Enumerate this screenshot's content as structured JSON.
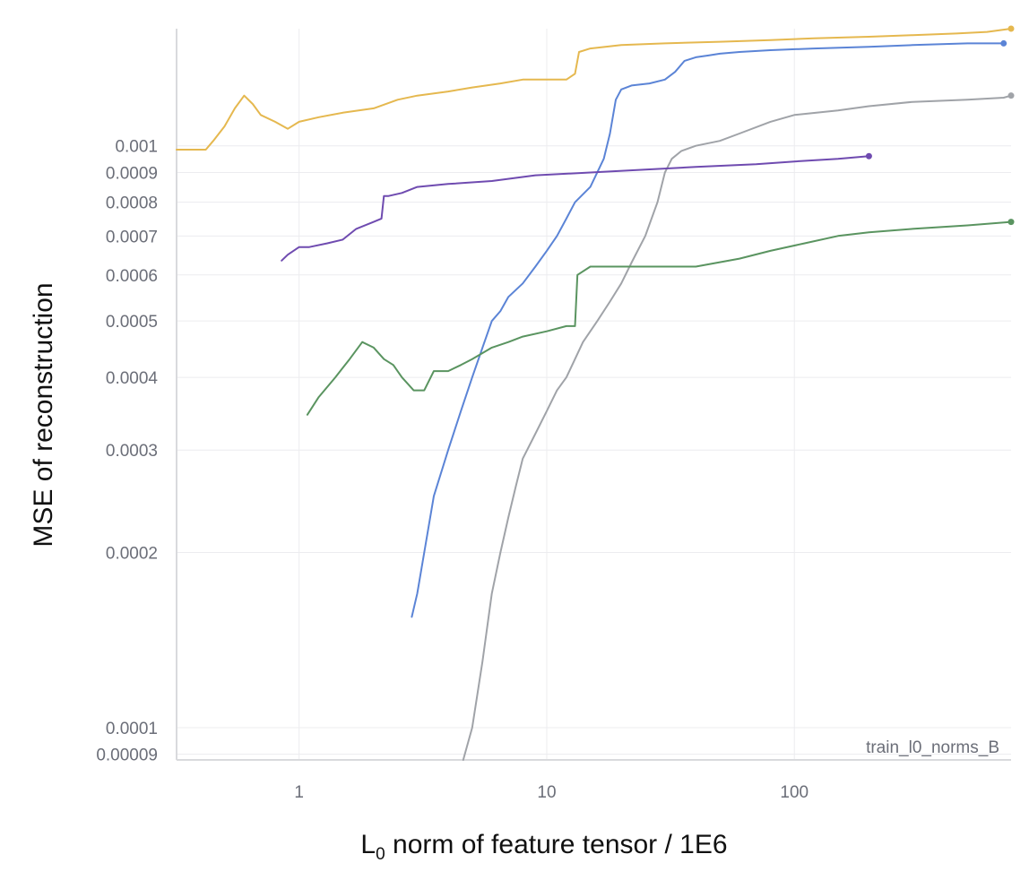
{
  "chart_data": {
    "type": "line",
    "title": "",
    "xlabel_main": "L",
    "xlabel_sub": "0",
    "xlabel_rest": " norm of feature tensor / 1E6",
    "ylabel": "MSE of reconstruction",
    "x_scale": "log",
    "y_scale": "log",
    "xlim": [
      0.32,
      750
    ],
    "ylim": [
      8.8e-05,
      0.00159
    ],
    "grid": true,
    "legend": "none",
    "annotation": "train_l0_norms_B",
    "x_ticks": [
      {
        "value": 1,
        "label": "1"
      },
      {
        "value": 10,
        "label": "10"
      },
      {
        "value": 100,
        "label": "100"
      }
    ],
    "y_ticks": [
      {
        "value": 9e-05,
        "label": "0.00009"
      },
      {
        "value": 0.0001,
        "label": "0.0001"
      },
      {
        "value": 0.0002,
        "label": "0.0002"
      },
      {
        "value": 0.0003,
        "label": "0.0003"
      },
      {
        "value": 0.0004,
        "label": "0.0004"
      },
      {
        "value": 0.0005,
        "label": "0.0005"
      },
      {
        "value": 0.0006,
        "label": "0.0006"
      },
      {
        "value": 0.0007,
        "label": "0.0007"
      },
      {
        "value": 0.0008,
        "label": "0.0008"
      },
      {
        "value": 0.0009,
        "label": "0.0009"
      },
      {
        "value": 0.001,
        "label": "0.001"
      }
    ],
    "series": [
      {
        "name": "yellow",
        "color": "#e5b84f",
        "x": [
          0.32,
          0.42,
          0.45,
          0.5,
          0.55,
          0.6,
          0.65,
          0.7,
          0.8,
          0.9,
          1.0,
          1.2,
          1.5,
          2.0,
          2.5,
          3.0,
          4.0,
          5.0,
          6.5,
          8.0,
          10,
          12,
          13,
          13.5,
          15,
          20,
          30,
          50,
          80,
          120,
          200,
          300,
          450,
          600,
          750
        ],
        "y": [
          0.000985,
          0.000985,
          0.00102,
          0.00108,
          0.00116,
          0.00122,
          0.00118,
          0.00113,
          0.0011,
          0.00107,
          0.0011,
          0.00112,
          0.00114,
          0.00116,
          0.0012,
          0.00122,
          0.00124,
          0.00126,
          0.00128,
          0.0013,
          0.0013,
          0.0013,
          0.00133,
          0.00145,
          0.00147,
          0.00149,
          0.0015,
          0.00151,
          0.00152,
          0.00153,
          0.00154,
          0.00155,
          0.00156,
          0.00157,
          0.00159
        ]
      },
      {
        "name": "blue",
        "color": "#5b84d6",
        "x": [
          2.85,
          3.0,
          3.2,
          3.5,
          4.0,
          4.5,
          5.0,
          5.5,
          6.0,
          6.5,
          7.0,
          8.0,
          9.0,
          10,
          11,
          12,
          13,
          15,
          17,
          18,
          19,
          20,
          22,
          26,
          30,
          33,
          36,
          40,
          45,
          50,
          60,
          80,
          120,
          200,
          300,
          500,
          700
        ],
        "y": [
          0.000155,
          0.00017,
          0.0002,
          0.00025,
          0.0003,
          0.00035,
          0.0004,
          0.00045,
          0.0005,
          0.00052,
          0.00055,
          0.00058,
          0.00062,
          0.00066,
          0.0007,
          0.00075,
          0.0008,
          0.00085,
          0.00095,
          0.00105,
          0.0012,
          0.00125,
          0.00127,
          0.00128,
          0.0013,
          0.00134,
          0.0014,
          0.00142,
          0.00143,
          0.00144,
          0.00145,
          0.00146,
          0.00147,
          0.00148,
          0.00149,
          0.0015,
          0.0015
        ]
      },
      {
        "name": "gray",
        "color": "#a0a3a8",
        "x": [
          4.6,
          5.0,
          5.5,
          6.0,
          6.5,
          7.0,
          7.5,
          8.0,
          9.0,
          10,
          11,
          12,
          13,
          14,
          16,
          18,
          20,
          22,
          25,
          28,
          30,
          32,
          35,
          40,
          50,
          60,
          80,
          100,
          150,
          200,
          300,
          500,
          700,
          750
        ],
        "y": [
          8.8e-05,
          0.0001,
          0.00013,
          0.00017,
          0.0002,
          0.00023,
          0.00026,
          0.00029,
          0.00032,
          0.00035,
          0.00038,
          0.0004,
          0.00043,
          0.00046,
          0.0005,
          0.00054,
          0.00058,
          0.00063,
          0.0007,
          0.0008,
          0.0009,
          0.00095,
          0.00098,
          0.001,
          0.00102,
          0.00105,
          0.0011,
          0.00113,
          0.00115,
          0.00117,
          0.00119,
          0.0012,
          0.00121,
          0.00122
        ]
      },
      {
        "name": "purple",
        "color": "#6f4bb0",
        "x": [
          0.85,
          0.9,
          1.0,
          1.1,
          1.3,
          1.5,
          1.7,
          2.0,
          2.15,
          2.2,
          2.3,
          2.6,
          3.0,
          4.0,
          6.0,
          9.0,
          15,
          25,
          40,
          70,
          100,
          150,
          200
        ],
        "y": [
          0.000635,
          0.00065,
          0.00067,
          0.00067,
          0.00068,
          0.00069,
          0.00072,
          0.00074,
          0.00075,
          0.00082,
          0.00082,
          0.00083,
          0.00085,
          0.00086,
          0.00087,
          0.00089,
          0.0009,
          0.00091,
          0.00092,
          0.00093,
          0.00094,
          0.00095,
          0.00096
        ]
      },
      {
        "name": "green",
        "color": "#5a9460",
        "x": [
          1.08,
          1.2,
          1.4,
          1.6,
          1.8,
          2.0,
          2.2,
          2.4,
          2.6,
          2.9,
          3.2,
          3.5,
          4.0,
          4.5,
          5.0,
          6.0,
          7.0,
          8.0,
          10,
          12,
          13,
          13.3,
          15,
          20,
          28,
          40,
          60,
          80,
          110,
          150,
          200,
          300,
          500,
          750
        ],
        "y": [
          0.000345,
          0.00037,
          0.0004,
          0.00043,
          0.00046,
          0.00045,
          0.00043,
          0.00042,
          0.0004,
          0.00038,
          0.00038,
          0.00041,
          0.00041,
          0.00042,
          0.00043,
          0.00045,
          0.00046,
          0.00047,
          0.00048,
          0.00049,
          0.00049,
          0.0006,
          0.00062,
          0.00062,
          0.00062,
          0.00062,
          0.00064,
          0.00066,
          0.00068,
          0.0007,
          0.00071,
          0.00072,
          0.00073,
          0.00074
        ]
      }
    ]
  }
}
